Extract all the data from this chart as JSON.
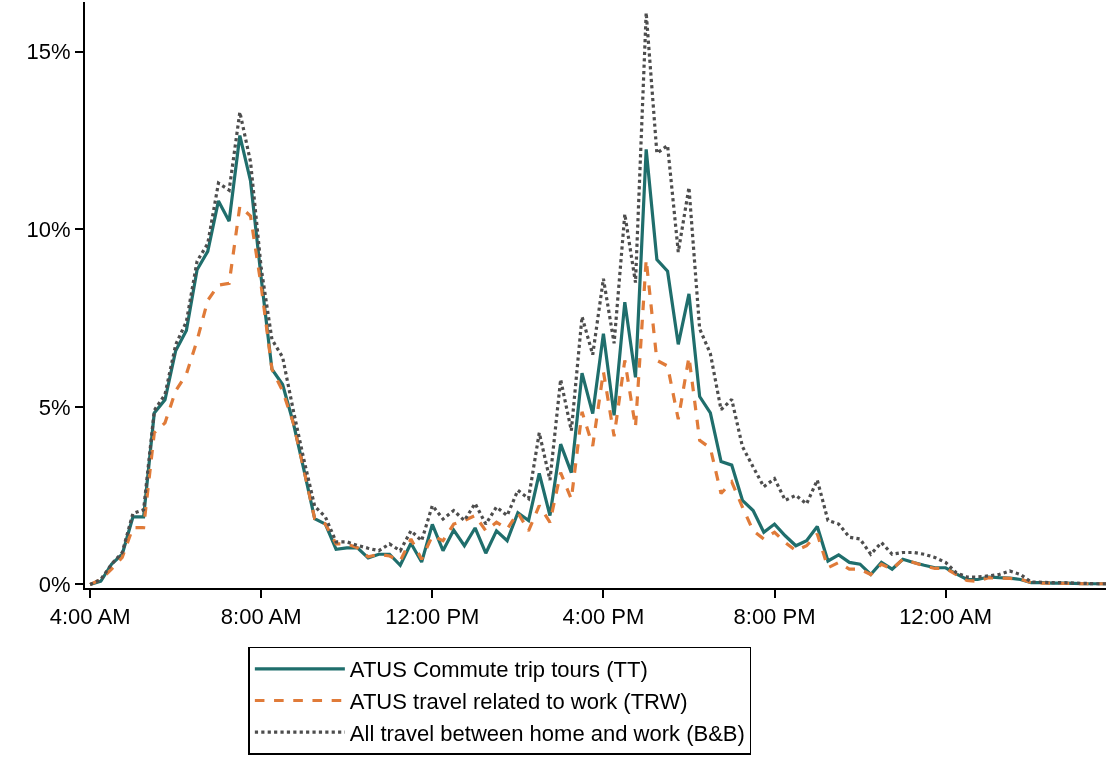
{
  "chart_data": {
    "type": "line",
    "x": [
      4,
      4.25,
      4.5,
      4.75,
      5,
      5.25,
      5.5,
      5.75,
      6,
      6.25,
      6.5,
      6.75,
      7,
      7.25,
      7.5,
      7.75,
      8,
      8.25,
      8.5,
      8.75,
      9,
      9.25,
      9.5,
      9.75,
      10,
      10.25,
      10.5,
      10.75,
      11,
      11.25,
      11.5,
      11.75,
      12,
      12.25,
      12.5,
      12.75,
      13,
      13.25,
      13.5,
      13.75,
      14,
      14.25,
      14.5,
      14.75,
      15,
      15.25,
      15.5,
      15.75,
      16,
      16.25,
      16.5,
      16.75,
      17,
      17.25,
      17.5,
      17.75,
      18,
      18.25,
      18.5,
      18.75,
      19,
      19.25,
      19.5,
      19.75,
      20,
      20.25,
      20.5,
      20.75,
      21,
      21.25,
      21.5,
      21.75,
      22,
      22.25,
      22.5,
      22.75,
      23,
      23.25,
      23.5,
      23.75,
      24,
      24.25,
      24.5,
      24.75,
      25,
      25.25,
      25.5,
      25.75,
      26,
      26.25,
      26.5,
      26.75,
      27,
      27.25,
      27.5,
      27.75
    ],
    "series": [
      {
        "name": "ATUS Commute trip tours (TT)",
        "color": "#1f6e6c",
        "line_style": "solid",
        "values": [
          0,
          0.09,
          0.57,
          0.85,
          1.9,
          1.9,
          4.83,
          5.2,
          6.58,
          7.15,
          8.86,
          9.38,
          10.8,
          10.23,
          12.64,
          11.36,
          8.62,
          6.06,
          5.63,
          4.55,
          3.22,
          1.85,
          1.7,
          0.99,
          1.03,
          1.03,
          0.75,
          0.85,
          0.85,
          0.54,
          1.16,
          0.63,
          1.69,
          0.95,
          1.53,
          1.09,
          1.59,
          0.88,
          1.51,
          1.23,
          2.02,
          1.8,
          3.13,
          1.94,
          3.95,
          3.15,
          5.95,
          4.81,
          7.06,
          4.76,
          7.95,
          5.83,
          12.25,
          9.15,
          8.82,
          6.76,
          8.18,
          5.29,
          4.83,
          3.46,
          3.36,
          2.37,
          2.08,
          1.47,
          1.7,
          1.37,
          1.09,
          1.23,
          1.63,
          0.66,
          0.83,
          0.62,
          0.57,
          0.28,
          0.62,
          0.43,
          0.71,
          0.62,
          0.54,
          0.47,
          0.47,
          0.3,
          0.14,
          0.14,
          0.21,
          0.19,
          0.18,
          0.14,
          0.05,
          0.05,
          0.04,
          0.04,
          0.03,
          0.02,
          0.02,
          0.02
        ]
      },
      {
        "name": "ATUS travel related to work (TRW)",
        "color": "#e07b39",
        "line_style": "dashed",
        "values": [
          0,
          0.14,
          0.43,
          0.76,
          1.6,
          1.6,
          4.27,
          4.55,
          5.45,
          5.92,
          6.87,
          8.0,
          8.43,
          8.48,
          10.65,
          10.37,
          8.4,
          6.06,
          5.45,
          4.55,
          3.22,
          1.85,
          1.7,
          1.14,
          1.14,
          1.03,
          0.78,
          0.85,
          0.8,
          0.66,
          1.28,
          0.71,
          1.37,
          1.23,
          1.7,
          1.8,
          1.94,
          1.51,
          1.75,
          1.56,
          2.02,
          1.51,
          2.22,
          1.75,
          3.15,
          2.4,
          4.86,
          3.9,
          5.99,
          4.17,
          6.31,
          4.43,
          9.15,
          6.31,
          6.15,
          4.65,
          6.41,
          4.06,
          3.84,
          2.56,
          2.89,
          2.18,
          1.51,
          1.28,
          1.47,
          1.18,
          0.95,
          1.09,
          1.42,
          0.47,
          0.62,
          0.43,
          0.43,
          0.28,
          0.57,
          0.43,
          0.71,
          0.62,
          0.52,
          0.45,
          0.45,
          0.28,
          0.11,
          0.09,
          0.19,
          0.18,
          0.17,
          0.15,
          0.05,
          0.04,
          0.04,
          0.03,
          0.03,
          0.02,
          0.02,
          0.02
        ]
      },
      {
        "name": "All travel between home and work (B&B)",
        "color": "#4d4d4d",
        "line_style": "dotted",
        "values": [
          0,
          0.14,
          0.57,
          0.9,
          2.0,
          2.1,
          4.9,
          5.35,
          6.75,
          7.4,
          9.1,
          9.6,
          11.3,
          11.1,
          13.3,
          11.9,
          8.9,
          6.9,
          6.4,
          4.9,
          3.5,
          2.2,
          1.9,
          1.2,
          1.2,
          1.1,
          1.02,
          0.95,
          1.14,
          0.95,
          1.51,
          1.23,
          2.22,
          1.84,
          2.08,
          1.8,
          2.28,
          1.7,
          2.18,
          1.94,
          2.65,
          2.42,
          4.27,
          2.94,
          5.77,
          4.33,
          7.54,
          6.47,
          8.61,
          6.79,
          10.43,
          8.5,
          16.1,
          12.14,
          12.36,
          9.36,
          11.18,
          7.2,
          6.5,
          4.92,
          5.21,
          3.88,
          3.31,
          2.75,
          2.98,
          2.37,
          2.51,
          2.27,
          2.94,
          1.8,
          1.7,
          1.33,
          1.28,
          0.85,
          1.18,
          0.85,
          0.9,
          0.9,
          0.85,
          0.76,
          0.62,
          0.33,
          0.21,
          0.21,
          0.24,
          0.28,
          0.38,
          0.28,
          0.07,
          0.06,
          0.05,
          0.05,
          0.04,
          0.03,
          0.02,
          0.02
        ]
      }
    ],
    "xlim": [
      3.88,
      27.75
    ],
    "xticks": [
      {
        "value": 4,
        "label": "4:00 AM"
      },
      {
        "value": 8,
        "label": "8:00 AM"
      },
      {
        "value": 12,
        "label": "12:00 PM"
      },
      {
        "value": 16,
        "label": "4:00 PM"
      },
      {
        "value": 20,
        "label": "8:00 PM"
      },
      {
        "value": 24,
        "label": "12:00 AM"
      }
    ],
    "ylim": [
      -0.1,
      16.4
    ],
    "yticks": [
      {
        "value": 0,
        "label": "0%"
      },
      {
        "value": 5,
        "label": "5%"
      },
      {
        "value": 10,
        "label": "10%"
      },
      {
        "value": 15,
        "label": "15%"
      }
    ],
    "grid": false,
    "legend": "bottom",
    "marker": "none"
  }
}
